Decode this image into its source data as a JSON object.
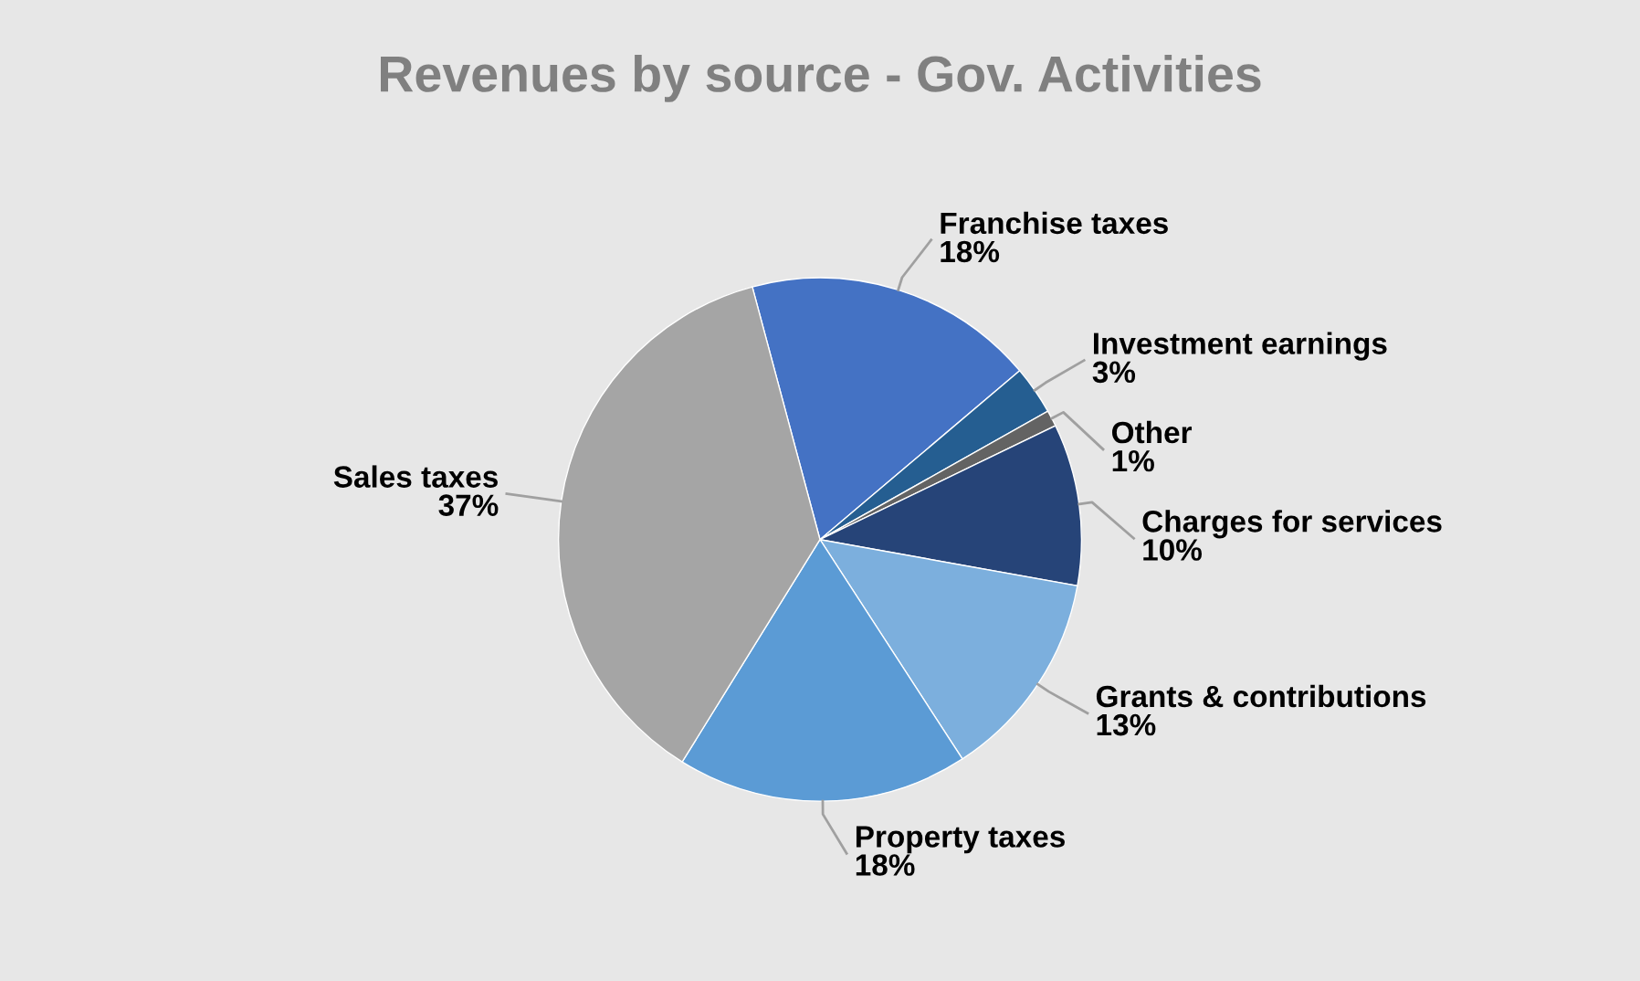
{
  "chart_data": {
    "type": "pie",
    "title": "Revenues by source - Gov. Activities",
    "categories": [
      "Franchise taxes",
      "Investment earnings",
      "Other",
      "Charges for services",
      "Grants & contributions",
      "Property taxes",
      "Sales taxes"
    ],
    "values": [
      18,
      3,
      1,
      10,
      13,
      18,
      37
    ],
    "value_labels": [
      "18%",
      "3%",
      "1%",
      "10%",
      "13%",
      "18%",
      "37%"
    ],
    "colors": [
      "#4472c4",
      "#255e91",
      "#636363",
      "#264478",
      "#7cafdd",
      "#5b9bd5",
      "#a5a5a5"
    ],
    "legend": false
  }
}
